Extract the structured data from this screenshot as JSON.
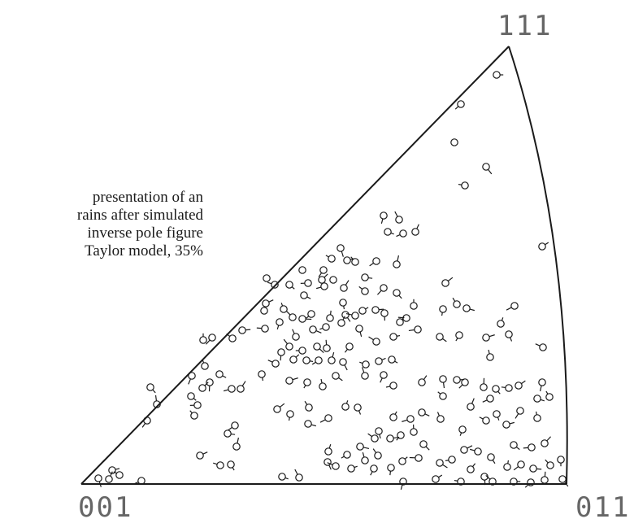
{
  "caption": {
    "lines": [
      "presentation  of  an",
      "rains after simulated",
      "inverse pole figure",
      "Taylor  model,  35%"
    ]
  },
  "corners": {
    "top": "111",
    "bottom_left": "001",
    "bottom_right": "011"
  },
  "colors": {
    "ink": "#1a1a1a",
    "label": "#666666"
  },
  "markers": [
    [
      611,
      92,
      1
    ],
    [
      567,
      128,
      1
    ],
    [
      559,
      175,
      0
    ],
    [
      598,
      205,
      1
    ],
    [
      572,
      228,
      1
    ],
    [
      667,
      303,
      1
    ],
    [
      472,
      265,
      1
    ],
    [
      491,
      270,
      1
    ],
    [
      477,
      285,
      1
    ],
    [
      496,
      287,
      1
    ],
    [
      511,
      285,
      1
    ],
    [
      419,
      305,
      1
    ],
    [
      408,
      318,
      1
    ],
    [
      427,
      320,
      1
    ],
    [
      398,
      332,
      1
    ],
    [
      372,
      332,
      0
    ],
    [
      356,
      350,
      1
    ],
    [
      379,
      348,
      1
    ],
    [
      396,
      344,
      1
    ],
    [
      410,
      344,
      0
    ],
    [
      437,
      322,
      1
    ],
    [
      449,
      341,
      1
    ],
    [
      463,
      321,
      1
    ],
    [
      488,
      325,
      1
    ],
    [
      328,
      342,
      0
    ],
    [
      338,
      350,
      1
    ],
    [
      327,
      373,
      1
    ],
    [
      325,
      382,
      0
    ],
    [
      349,
      380,
      1
    ],
    [
      374,
      363,
      1
    ],
    [
      399,
      352,
      1
    ],
    [
      423,
      354,
      1
    ],
    [
      422,
      372,
      1
    ],
    [
      449,
      358,
      1
    ],
    [
      462,
      381,
      1
    ],
    [
      472,
      354,
      1
    ],
    [
      509,
      376,
      1
    ],
    [
      488,
      360,
      1
    ],
    [
      500,
      391,
      1
    ],
    [
      548,
      348,
      1
    ],
    [
      545,
      380,
      1
    ],
    [
      562,
      374,
      1
    ],
    [
      574,
      379,
      1
    ],
    [
      633,
      376,
      1
    ],
    [
      616,
      398,
      1
    ],
    [
      626,
      411,
      1
    ],
    [
      668,
      427,
      1
    ],
    [
      598,
      415,
      1
    ],
    [
      565,
      412,
      1
    ],
    [
      603,
      439,
      1
    ],
    [
      541,
      414,
      1
    ],
    [
      514,
      405,
      1
    ],
    [
      492,
      396,
      1
    ],
    [
      473,
      385,
      1
    ],
    [
      360,
      390,
      1
    ],
    [
      372,
      392,
      1
    ],
    [
      383,
      386,
      1
    ],
    [
      406,
      391,
      1
    ],
    [
      425,
      387,
      1
    ],
    [
      437,
      388,
      1
    ],
    [
      446,
      382,
      1
    ],
    [
      344,
      396,
      1
    ],
    [
      364,
      414,
      1
    ],
    [
      385,
      405,
      1
    ],
    [
      401,
      402,
      1
    ],
    [
      420,
      397,
      1
    ],
    [
      442,
      404,
      1
    ],
    [
      463,
      420,
      1
    ],
    [
      484,
      414,
      1
    ],
    [
      430,
      426,
      1
    ],
    [
      402,
      428,
      1
    ],
    [
      390,
      426,
      1
    ],
    [
      372,
      431,
      1
    ],
    [
      361,
      442,
      1
    ],
    [
      346,
      433,
      1
    ],
    [
      356,
      426,
      1
    ],
    [
      377,
      443,
      1
    ],
    [
      392,
      443,
      1
    ],
    [
      408,
      443,
      1
    ],
    [
      422,
      445,
      1
    ],
    [
      450,
      448,
      1
    ],
    [
      466,
      444,
      1
    ],
    [
      472,
      461,
      1
    ],
    [
      449,
      462,
      1
    ],
    [
      482,
      442,
      1
    ],
    [
      484,
      474,
      1
    ],
    [
      519,
      470,
      1
    ],
    [
      545,
      466,
      1
    ],
    [
      545,
      487,
      1
    ],
    [
      562,
      467,
      1
    ],
    [
      572,
      470,
      1
    ],
    [
      595,
      476,
      1
    ],
    [
      610,
      478,
      1
    ],
    [
      626,
      477,
      1
    ],
    [
      638,
      474,
      1
    ],
    [
      667,
      470,
      1
    ],
    [
      676,
      488,
      1
    ],
    [
      661,
      490,
      1
    ],
    [
      603,
      490,
      1
    ],
    [
      579,
      500,
      1
    ],
    [
      611,
      509,
      1
    ],
    [
      598,
      517,
      1
    ],
    [
      623,
      522,
      1
    ],
    [
      640,
      505,
      1
    ],
    [
      661,
      514,
      1
    ],
    [
      632,
      547,
      1
    ],
    [
      654,
      550,
      1
    ],
    [
      670,
      545,
      1
    ],
    [
      690,
      565,
      1
    ],
    [
      677,
      572,
      1
    ],
    [
      656,
      576,
      1
    ],
    [
      641,
      571,
      1
    ],
    [
      624,
      574,
      1
    ],
    [
      604,
      562,
      1
    ],
    [
      588,
      555,
      1
    ],
    [
      571,
      553,
      1
    ],
    [
      569,
      528,
      1
    ],
    [
      542,
      515,
      1
    ],
    [
      519,
      507,
      1
    ],
    [
      505,
      515,
      1
    ],
    [
      484,
      513,
      1
    ],
    [
      466,
      530,
      1
    ],
    [
      461,
      539,
      1
    ],
    [
      480,
      539,
      1
    ],
    [
      493,
      535,
      1
    ],
    [
      509,
      531,
      1
    ],
    [
      521,
      546,
      1
    ],
    [
      515,
      563,
      1
    ],
    [
      495,
      567,
      1
    ],
    [
      481,
      575,
      1
    ],
    [
      465,
      560,
      1
    ],
    [
      443,
      549,
      1
    ],
    [
      427,
      559,
      1
    ],
    [
      404,
      555,
      1
    ],
    [
      403,
      568,
      1
    ],
    [
      413,
      573,
      1
    ],
    [
      432,
      576,
      1
    ],
    [
      460,
      576,
      1
    ],
    [
      449,
      566,
      1
    ],
    [
      541,
      569,
      1
    ],
    [
      556,
      565,
      1
    ],
    [
      579,
      577,
      1
    ],
    [
      596,
      586,
      1
    ],
    [
      606,
      592,
      1
    ],
    [
      632,
      592,
      1
    ],
    [
      653,
      593,
      1
    ],
    [
      670,
      590,
      1
    ],
    [
      692,
      589,
      1
    ],
    [
      567,
      592,
      1
    ],
    [
      536,
      589,
      1
    ],
    [
      496,
      592,
      1
    ],
    [
      368,
      587,
      1
    ],
    [
      347,
      586,
      1
    ],
    [
      174,
      591,
      1
    ],
    [
      134,
      589,
      1
    ],
    [
      121,
      588,
      1
    ],
    [
      147,
      584,
      1
    ],
    [
      138,
      578,
      1
    ],
    [
      181,
      517,
      1
    ],
    [
      193,
      497,
      1
    ],
    [
      235,
      487,
      1
    ],
    [
      243,
      498,
      1
    ],
    [
      249,
      477,
      1
    ],
    [
      258,
      470,
      1
    ],
    [
      239,
      511,
      1
    ],
    [
      280,
      533,
      1
    ],
    [
      289,
      523,
      1
    ],
    [
      291,
      549,
      1
    ],
    [
      284,
      571,
      1
    ],
    [
      271,
      572,
      1
    ],
    [
      246,
      560,
      1
    ],
    [
      236,
      462,
      1
    ],
    [
      252,
      450,
      1
    ],
    [
      270,
      460,
      1
    ],
    [
      285,
      478,
      1
    ],
    [
      296,
      478,
      1
    ],
    [
      322,
      460,
      1
    ],
    [
      286,
      416,
      1
    ],
    [
      298,
      406,
      1
    ],
    [
      261,
      415,
      1
    ],
    [
      250,
      418,
      1
    ],
    [
      185,
      476,
      1
    ],
    [
      326,
      404,
      1
    ],
    [
      341,
      503,
      1
    ],
    [
      357,
      509,
      1
    ],
    [
      380,
      501,
      1
    ],
    [
      379,
      521,
      1
    ],
    [
      404,
      514,
      1
    ],
    [
      425,
      500,
      1
    ],
    [
      440,
      501,
      1
    ],
    [
      339,
      447,
      1
    ],
    [
      356,
      468,
      1
    ],
    [
      378,
      470,
      1
    ],
    [
      397,
      475,
      1
    ],
    [
      413,
      462,
      1
    ]
  ]
}
